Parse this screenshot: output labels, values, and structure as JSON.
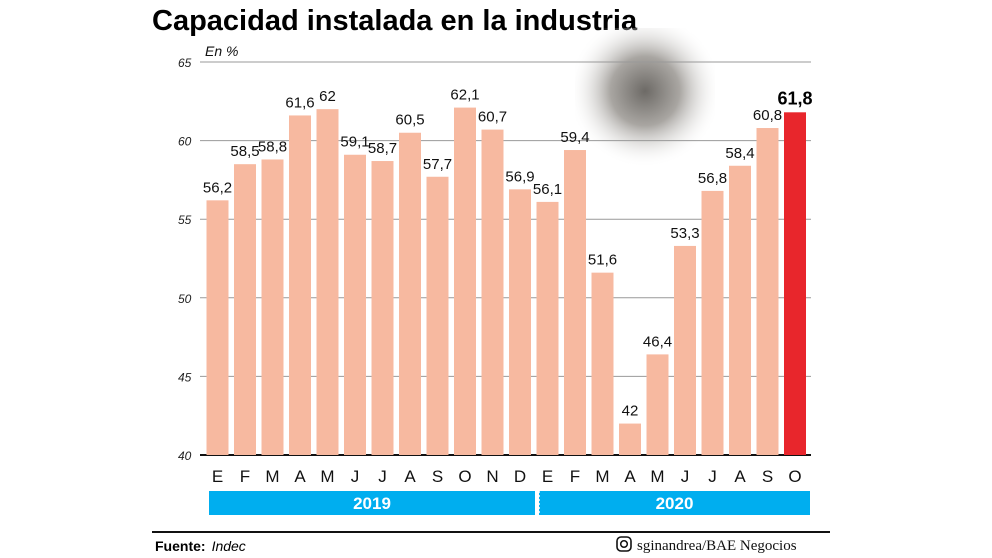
{
  "chart_data": {
    "type": "bar",
    "title": "Capacidad instalada en la industria",
    "ylabel": "En %",
    "ylim": [
      40,
      65
    ],
    "yticks": [
      40,
      45,
      50,
      55,
      60,
      65
    ],
    "grid": true,
    "categories": [
      "E",
      "F",
      "M",
      "A",
      "M",
      "J",
      "J",
      "A",
      "S",
      "O",
      "N",
      "D",
      "E",
      "F",
      "M",
      "A",
      "M",
      "J",
      "J",
      "A",
      "S",
      "O"
    ],
    "values": [
      56.2,
      58.5,
      58.8,
      61.6,
      62,
      59.1,
      58.7,
      60.5,
      57.7,
      62.1,
      60.7,
      56.9,
      56.1,
      59.4,
      51.6,
      42,
      46.4,
      53.3,
      56.8,
      58.4,
      60.8,
      61.8
    ],
    "labels": [
      "56,2",
      "58,5",
      "58,8",
      "61,6",
      "62",
      "59,1",
      "58,7",
      "60,5",
      "57,7",
      "62,1",
      "60,7",
      "56,9",
      "56,1",
      "59,4",
      "51,6",
      "42",
      "46,4",
      "53,3",
      "56,8",
      "58,4",
      "60,8",
      "61,8"
    ],
    "years": [
      {
        "label": "2019",
        "months": 12
      },
      {
        "label": "2020",
        "months": 10
      }
    ],
    "colors": {
      "bar": "#f7b9a0",
      "highlight": "#e8262c",
      "year_band": "#00aeef"
    },
    "highlight_index": 21
  },
  "footer": {
    "source_label": "Fuente:",
    "source": "Indec",
    "credit": "sginandrea/BAE Negocios",
    "credit_icon": "instagram-icon"
  }
}
